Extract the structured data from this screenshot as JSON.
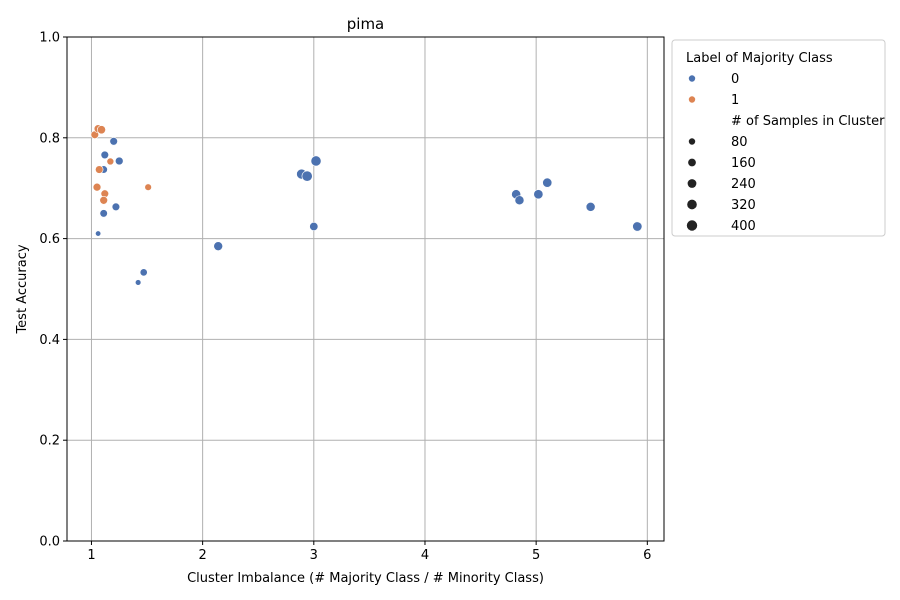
{
  "chart_data": {
    "type": "scatter",
    "title": "pima",
    "xlabel": "Cluster Imbalance (# Majority Class / # Minority Class)",
    "ylabel": "Test Accuracy",
    "xlim": [
      0.78,
      6.15
    ],
    "ylim": [
      0.0,
      1.0
    ],
    "xticks": [
      1,
      2,
      3,
      4,
      5,
      6
    ],
    "xtick_labels": [
      "1",
      "2",
      "3",
      "4",
      "5",
      "6"
    ],
    "yticks": [
      0.0,
      0.2,
      0.4,
      0.6,
      0.8,
      1.0
    ],
    "ytick_labels": [
      "0.0",
      "0.2",
      "0.4",
      "0.6",
      "0.8",
      "1.0"
    ],
    "grid": true,
    "legend_placement": "outside-upper-right",
    "colors": {
      "0": "#4c72b0",
      "1": "#dd8452"
    },
    "legend": {
      "hue_title": "Label of Majority Class",
      "hue_entries": [
        {
          "label": "0",
          "color": "#4c72b0"
        },
        {
          "label": "1",
          "color": "#dd8452"
        }
      ],
      "size_title": "# of Samples in Cluster",
      "size_entries": [
        {
          "label": "80",
          "value": 80
        },
        {
          "label": "160",
          "value": 160
        },
        {
          "label": "240",
          "value": 240
        },
        {
          "label": "320",
          "value": 320
        },
        {
          "label": "400",
          "value": 400
        }
      ]
    },
    "series": [
      {
        "name": "0",
        "color": "#4c72b0",
        "points": [
          {
            "x": 1.06,
            "y": 0.61,
            "size": 40
          },
          {
            "x": 1.11,
            "y": 0.65,
            "size": 150
          },
          {
            "x": 1.11,
            "y": 0.737,
            "size": 150
          },
          {
            "x": 1.12,
            "y": 0.766,
            "size": 160
          },
          {
            "x": 1.2,
            "y": 0.793,
            "size": 160
          },
          {
            "x": 1.22,
            "y": 0.663,
            "size": 160
          },
          {
            "x": 1.25,
            "y": 0.754,
            "size": 170
          },
          {
            "x": 1.42,
            "y": 0.513,
            "size": 50
          },
          {
            "x": 1.47,
            "y": 0.533,
            "size": 130
          },
          {
            "x": 2.14,
            "y": 0.585,
            "size": 260
          },
          {
            "x": 2.89,
            "y": 0.728,
            "size": 360
          },
          {
            "x": 2.94,
            "y": 0.724,
            "size": 400
          },
          {
            "x": 3.0,
            "y": 0.624,
            "size": 210
          },
          {
            "x": 3.02,
            "y": 0.754,
            "size": 380
          },
          {
            "x": 4.82,
            "y": 0.688,
            "size": 280
          },
          {
            "x": 4.85,
            "y": 0.676,
            "size": 270
          },
          {
            "x": 5.02,
            "y": 0.688,
            "size": 290
          },
          {
            "x": 5.1,
            "y": 0.711,
            "size": 290
          },
          {
            "x": 5.49,
            "y": 0.663,
            "size": 270
          },
          {
            "x": 5.91,
            "y": 0.624,
            "size": 300
          }
        ]
      },
      {
        "name": "1",
        "color": "#dd8452",
        "points": [
          {
            "x": 1.03,
            "y": 0.806,
            "size": 160
          },
          {
            "x": 1.06,
            "y": 0.818,
            "size": 180
          },
          {
            "x": 1.09,
            "y": 0.816,
            "size": 200
          },
          {
            "x": 1.05,
            "y": 0.702,
            "size": 170
          },
          {
            "x": 1.07,
            "y": 0.737,
            "size": 160
          },
          {
            "x": 1.12,
            "y": 0.689,
            "size": 160
          },
          {
            "x": 1.11,
            "y": 0.676,
            "size": 170
          },
          {
            "x": 1.17,
            "y": 0.753,
            "size": 110
          },
          {
            "x": 1.51,
            "y": 0.702,
            "size": 100
          }
        ]
      }
    ]
  }
}
